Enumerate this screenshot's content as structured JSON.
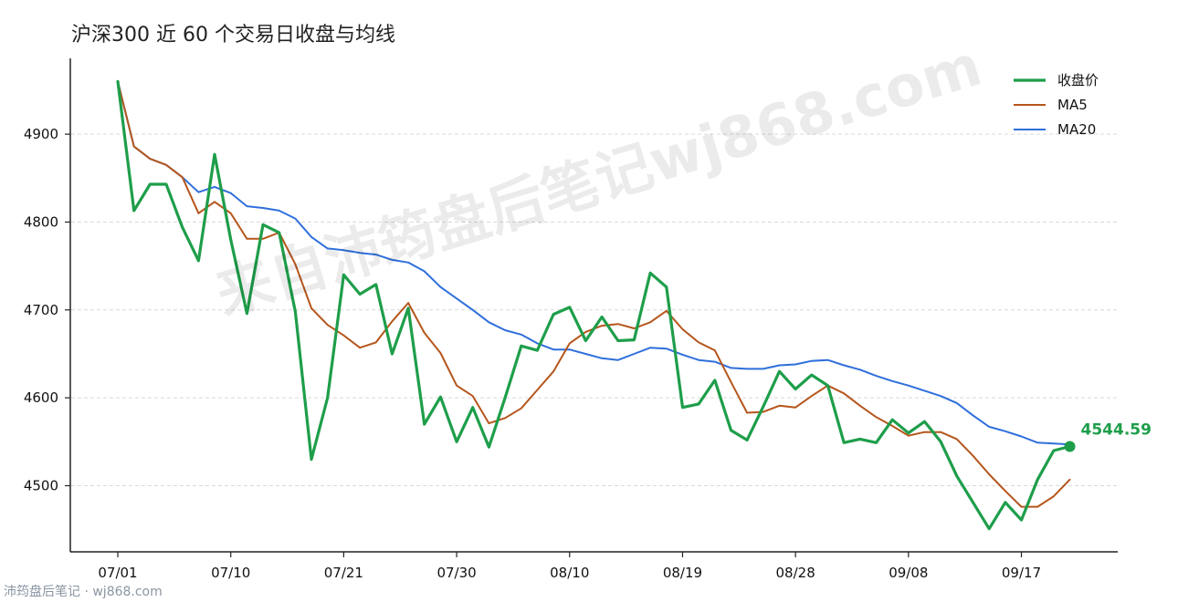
{
  "chart_data": {
    "type": "line",
    "title": "沪深300 近 60 个交易日收盘与均线",
    "xlabel": "",
    "ylabel": "",
    "ylim": [
      4435,
      4990
    ],
    "yticks": [
      4500,
      4600,
      4700,
      4800,
      4900
    ],
    "x_tick_labels": [
      {
        "index": 0,
        "label": "07/01"
      },
      {
        "index": 7,
        "label": "07/10"
      },
      {
        "index": 14,
        "label": "07/21"
      },
      {
        "index": 21,
        "label": "07/30"
      },
      {
        "index": 28,
        "label": "08/10"
      },
      {
        "index": 35,
        "label": "08/19"
      },
      {
        "index": 42,
        "label": "08/28"
      },
      {
        "index": 49,
        "label": "09/08"
      },
      {
        "index": 56,
        "label": "09/17"
      }
    ],
    "grid": "horizontal dashed",
    "legend_position": "top-right",
    "series": [
      {
        "name": "收盘价",
        "color": "#1e9e4a",
        "values": [
          4960,
          4813,
          4843,
          4843,
          4794,
          4756,
          4877,
          4780,
          4696,
          4797,
          4788,
          4698,
          4530,
          4600,
          4740,
          4718,
          4729,
          4650,
          4702,
          4570,
          4601,
          4550,
          4589,
          4544,
          4600,
          4659,
          4654,
          4695,
          4703,
          4665,
          4692,
          4665,
          4666,
          4742,
          4726,
          4589,
          4593,
          4620,
          4563,
          4552,
          4590,
          4630,
          4610,
          4626,
          4614,
          4549,
          4553,
          4549,
          4575,
          4560,
          4573,
          4550,
          4511,
          4481,
          4451,
          4481,
          4461,
          4507,
          4540,
          4544.59
        ]
      },
      {
        "name": "MA5",
        "color": "#b5561c",
        "values": [
          4960,
          4886,
          4872,
          4865,
          4851,
          4810,
          4823,
          4810,
          4781,
          4781,
          4788,
          4752,
          4702,
          4683,
          4671,
          4657,
          4663,
          4687,
          4708,
          4674,
          4651,
          4614,
          4602,
          4571,
          4577,
          4588,
          4609,
          4630,
          4662,
          4675,
          4682,
          4684,
          4679,
          4686,
          4699,
          4678,
          4663,
          4654,
          4618,
          4583,
          4584,
          4591,
          4589,
          4602,
          4614,
          4605,
          4591,
          4578,
          4568,
          4557,
          4561,
          4561,
          4553,
          4534,
          4513,
          4494,
          4476,
          4476,
          4488,
          4507
        ]
      },
      {
        "name": "MA20",
        "color": "#2f6fdb",
        "values": [
          4960,
          4886,
          4872,
          4865,
          4851,
          4834,
          4840,
          4833,
          4818,
          4816,
          4813,
          4804,
          4783,
          4770,
          4768,
          4765,
          4763,
          4757,
          4754,
          4744,
          4726,
          4713,
          4700,
          4686,
          4677,
          4672,
          4662,
          4655,
          4655,
          4650,
          4645,
          4643,
          4650,
          4657,
          4656,
          4649,
          4643,
          4641,
          4634,
          4633,
          4633,
          4637,
          4638,
          4642,
          4643,
          4637,
          4632,
          4625,
          4619,
          4614,
          4608,
          4602,
          4594,
          4580,
          4567,
          4562,
          4556,
          4549,
          4548,
          4547
        ]
      }
    ],
    "last_value_label": "4544.59",
    "watermark": "来自沛筠盘后笔记wj868.com",
    "footer": "沛筠盘后笔记 · wj868.com"
  }
}
